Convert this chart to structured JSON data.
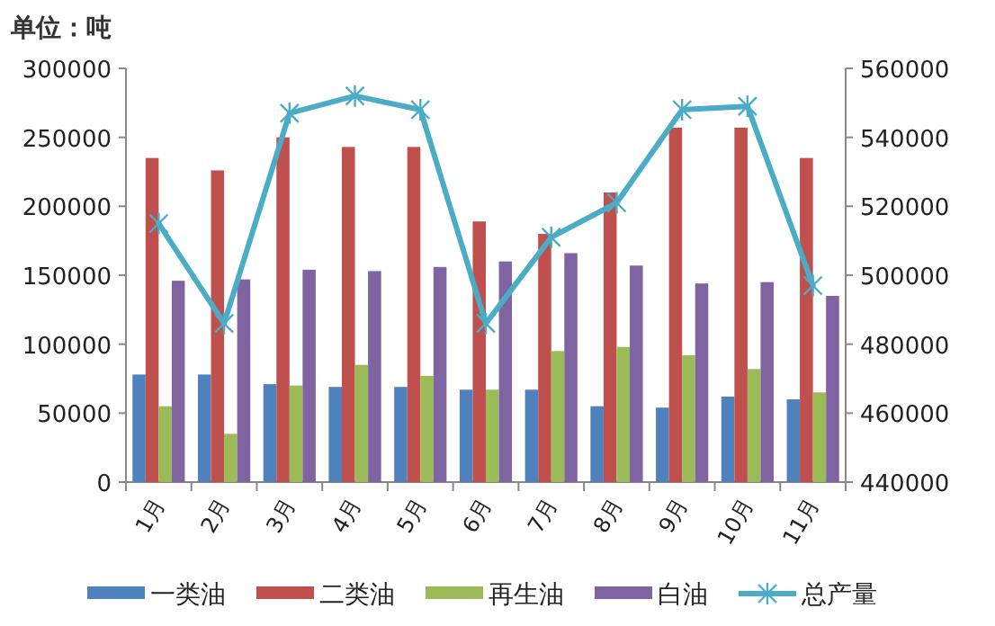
{
  "chart_data": {
    "type": "bar",
    "title": "单位：吨",
    "categories": [
      "1月",
      "2月",
      "3月",
      "4月",
      "5月",
      "6月",
      "7月",
      "8月",
      "9月",
      "10月",
      "11月"
    ],
    "series": [
      {
        "name": "一类油",
        "color": "#4f81bd",
        "values": [
          78000,
          78000,
          71000,
          69000,
          69000,
          67000,
          67000,
          55000,
          54000,
          62000,
          60000
        ]
      },
      {
        "name": "二类油",
        "color": "#c0504d",
        "values": [
          235000,
          226000,
          250000,
          243000,
          243000,
          189000,
          180000,
          210000,
          257000,
          257000,
          235000
        ]
      },
      {
        "name": "再生油",
        "color": "#9bbb59",
        "values": [
          55000,
          35000,
          70000,
          85000,
          77000,
          67000,
          95000,
          98000,
          92000,
          82000,
          65000
        ]
      },
      {
        "name": "白油",
        "color": "#8064a2",
        "values": [
          146000,
          147000,
          154000,
          153000,
          156000,
          160000,
          166000,
          157000,
          144000,
          145000,
          135000
        ]
      },
      {
        "name": "总产量",
        "color": "#4bacc6",
        "type": "line",
        "axis": "y2",
        "marker": "cross",
        "values": [
          515000,
          486000,
          547000,
          552000,
          548000,
          486000,
          511000,
          521000,
          548000,
          549000,
          497000
        ]
      }
    ],
    "ylim": [
      0,
      300000
    ],
    "yticks": [
      0,
      50000,
      100000,
      150000,
      200000,
      250000,
      300000
    ],
    "y2lim": [
      440000,
      560000
    ],
    "y2ticks": [
      440000,
      460000,
      480000,
      500000,
      520000,
      540000,
      560000
    ],
    "legend": "bottom"
  }
}
